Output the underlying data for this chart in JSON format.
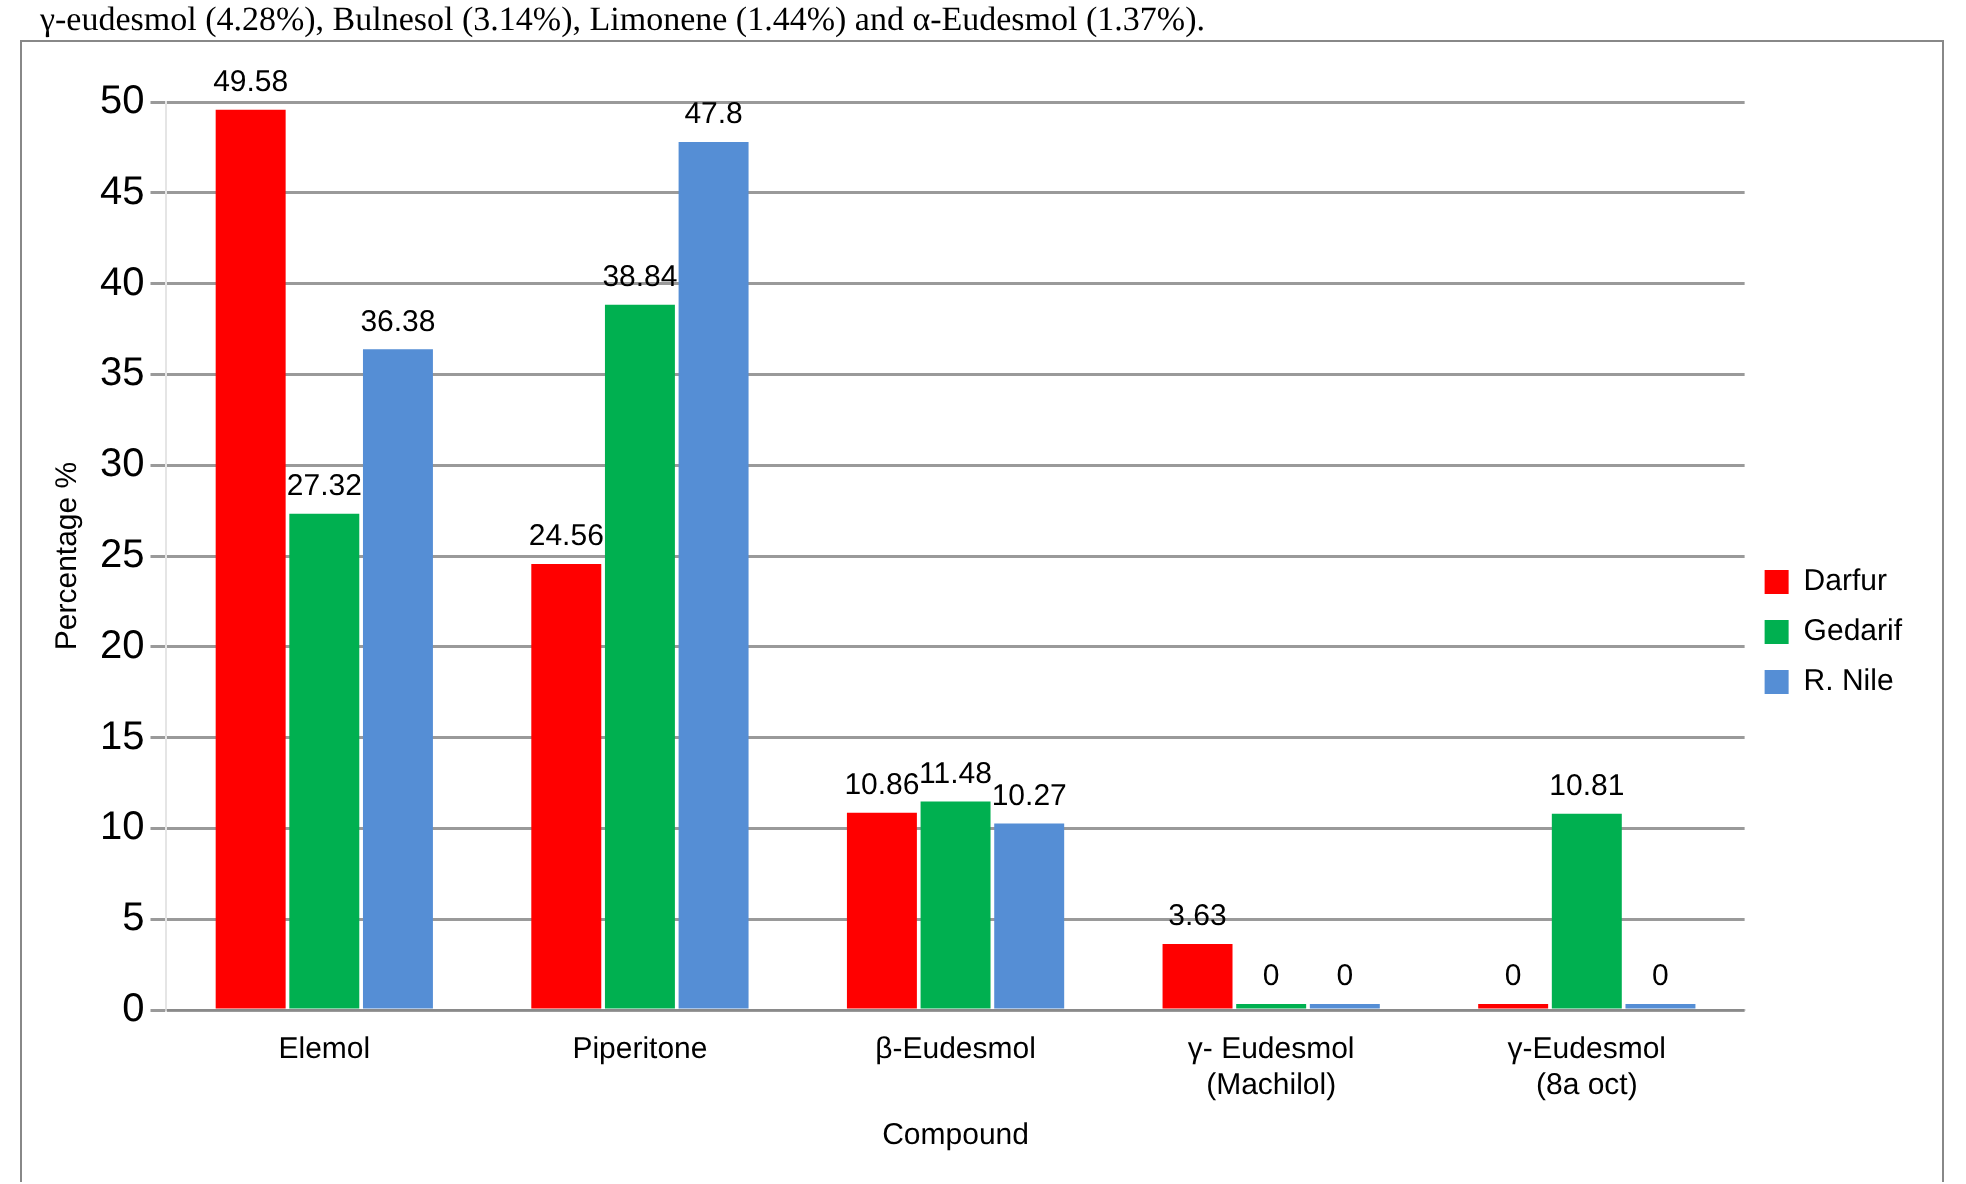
{
  "chart_data": {
    "type": "bar",
    "xlabel": "Compound",
    "ylabel": "Percentage %",
    "categories": [
      "Elemol",
      "Piperitone",
      "β-Eudesmol",
      "γ- Eudesmol\n(Machilol)",
      "γ-Eudesmol\n(8a oct)"
    ],
    "series": [
      {
        "name": "Darfur",
        "color": "#ff0000",
        "values": [
          49.58,
          24.56,
          10.86,
          3.63,
          0
        ]
      },
      {
        "name": "Gedarif",
        "color": "#00b050",
        "values": [
          27.32,
          38.84,
          11.48,
          0,
          10.81
        ]
      },
      {
        "name": "R. Nile",
        "color": "#558ed5",
        "values": [
          36.38,
          47.8,
          10.27,
          0,
          0
        ]
      }
    ],
    "ylim": [
      0,
      50
    ],
    "yticks": [
      0,
      5,
      10,
      15,
      20,
      25,
      30,
      35,
      40,
      45,
      50
    ],
    "grid": "y",
    "legend": "right",
    "data_labels": true,
    "annotations": [
      "γ-eudesmol (4.28%), Bulnesol (3.14%), Limonene (1.44%) and α-Eudesmol (1.37%)."
    ]
  }
}
